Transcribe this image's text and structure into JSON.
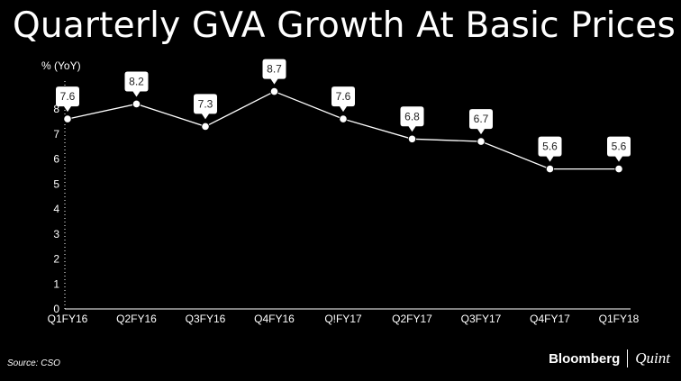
{
  "header": {
    "title": "Quarterly GVA Growth At Basic Prices"
  },
  "footer": {
    "source": "Source: CSO",
    "brand_primary": "Bloomberg",
    "brand_secondary": "Quint"
  },
  "colors": {
    "background": "#000000",
    "line": "#ffffff",
    "label_box": "#ffffff",
    "label_text": "#222222",
    "axis": "#ffffff"
  },
  "chart_data": {
    "type": "line",
    "ylabel": "% (YoY)",
    "categories": [
      "Q1FY16",
      "Q2FY16",
      "Q3FY16",
      "Q4FY16",
      "Q!FY17",
      "Q2FY17",
      "Q3FY17",
      "Q4FY17",
      "Q1FY18"
    ],
    "series": [
      {
        "values": [
          7.6,
          8.2,
          7.3,
          8.7,
          7.6,
          6.8,
          6.7,
          5.6,
          5.6
        ],
        "labels": [
          "7.6",
          "8.2",
          "7.3",
          "8.7",
          "7.6",
          "6.8",
          "6.7",
          "5.6",
          "5.6"
        ]
      }
    ],
    "ylim": [
      0,
      8
    ],
    "yticks": [
      "0",
      "1",
      "2",
      "3",
      "4",
      "5",
      "6",
      "7",
      "8"
    ],
    "grid": false,
    "y_axis_style": "dotted",
    "legend": "none"
  }
}
